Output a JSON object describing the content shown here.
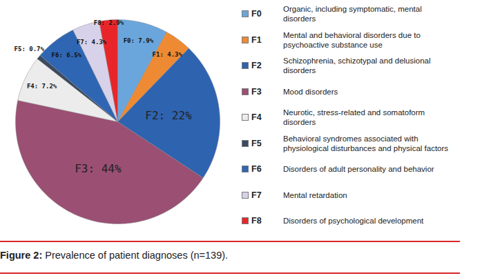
{
  "chart_data": {
    "type": "pie",
    "caption": "Figure 2: Prevalence of patient diagnoses (n=139).",
    "categories": [
      "F0",
      "F1",
      "F2",
      "F3",
      "F4",
      "F5",
      "F6",
      "F7",
      "F8"
    ],
    "descriptions": [
      "Organic, including symptomatic, mental disorders",
      "Mental and behavioral disorders due to psychoactive substance use",
      "Schizophrenia, schizotypal and delusional disorders",
      "Mood disorders",
      "Neurotic, stress-related and somatoform disorders",
      "Behavioral syndromes associated with physiological disturbances and physical factors",
      "Disorders of adult personality and behavior",
      "Mental retardation",
      "Disorders of psychological development"
    ],
    "values": [
      7.9,
      4.3,
      22,
      44,
      7.2,
      0.7,
      6.5,
      4.3,
      2.9
    ],
    "value_labels": [
      "F0: 7.9%",
      "F1: 4.3%",
      "F2: 22%",
      "F3: 44%",
      "F4: 7.2%",
      "F5: 0.7%",
      "F6: 6.5%",
      "F7: 4.3%",
      "F8: 2.9%"
    ],
    "colors": [
      "#6aa6dc",
      "#ee8a33",
      "#2e63b0",
      "#9b4f73",
      "#ececec",
      "#3b4a60",
      "#2f66b3",
      "#d7d2ea",
      "#e8262a"
    ],
    "data_labels": true,
    "legend": "right"
  }
}
